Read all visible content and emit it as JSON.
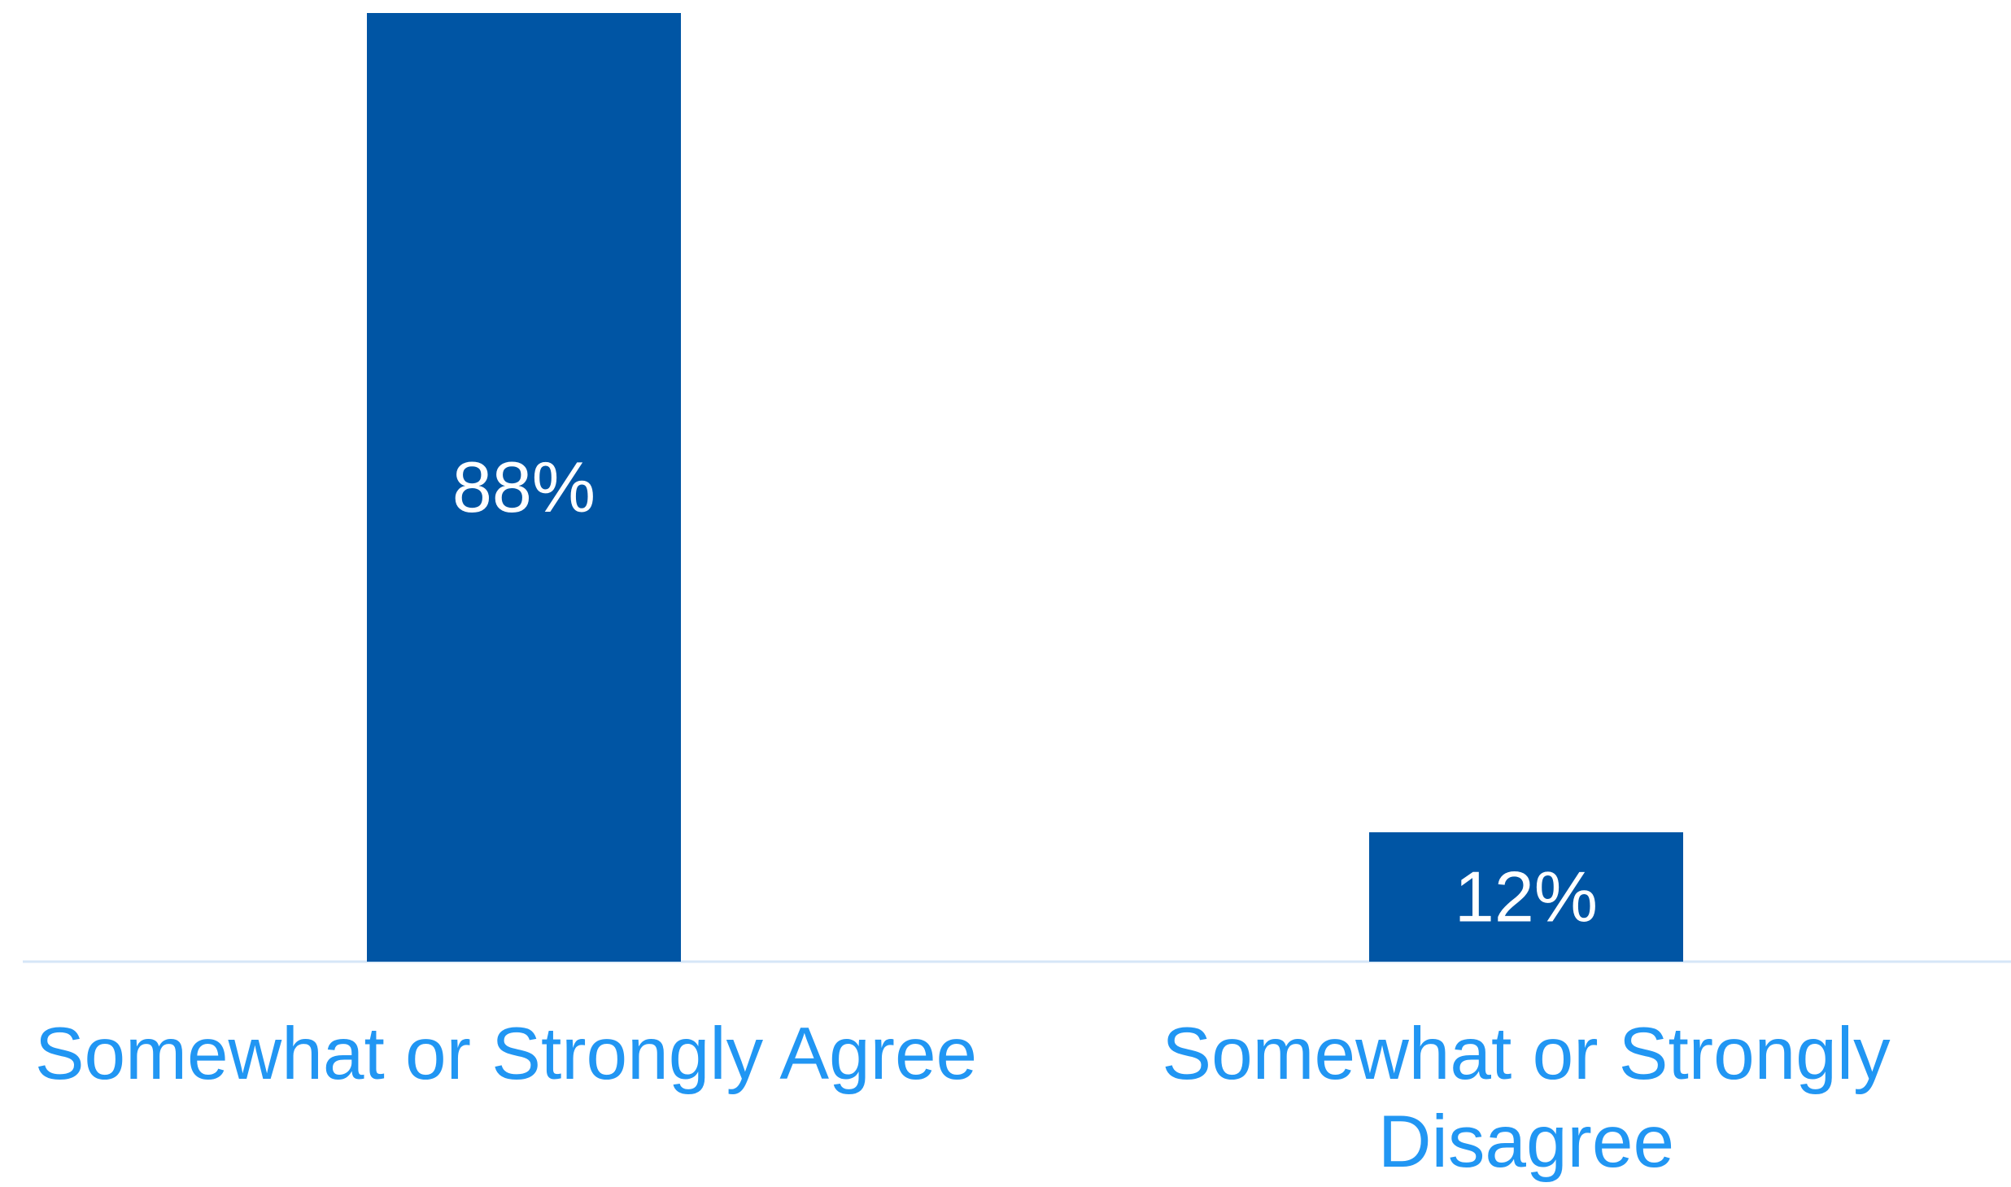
{
  "chart_data": {
    "type": "bar",
    "title": "",
    "xlabel": "",
    "ylabel": "",
    "categories": [
      "Somewhat or Strongly Agree",
      "Somewhat or Strongly Disagree"
    ],
    "values": [
      88,
      12
    ],
    "data_labels": [
      "88%",
      "12%"
    ],
    "ylim": [
      0,
      88
    ],
    "grid": false,
    "legend": "none",
    "colors": {
      "bar": "#0055a4",
      "data_label": "#ffffff",
      "category_label": "#2196f3",
      "axis_line": "#d6e6f7"
    }
  }
}
